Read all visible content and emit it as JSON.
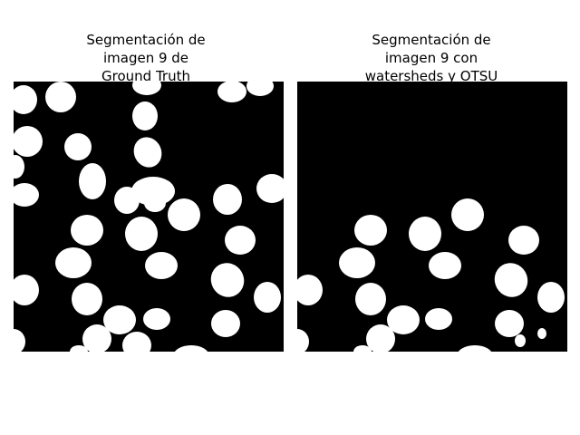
{
  "figure": {
    "left_title": "Segmentación de\nimagen 9 de\nGround Truth",
    "right_title": "Segmentación de\nimagen 9 con\nwatersheds y OTSU"
  },
  "colors": {
    "background": "#ffffff",
    "mask_background": "#000000",
    "mask_foreground": "#ffffff"
  }
}
